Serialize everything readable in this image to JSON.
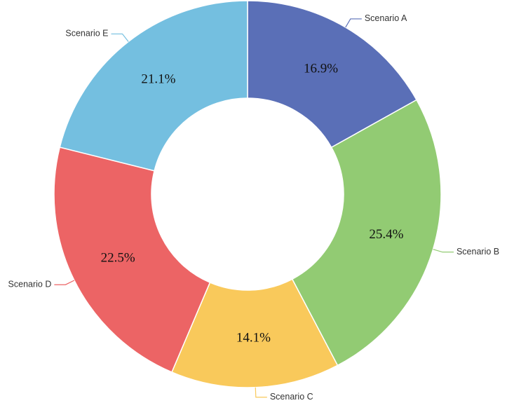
{
  "chart_data": {
    "type": "pie",
    "variant": "donut",
    "categories": [
      "Scenario A",
      "Scenario B",
      "Scenario C",
      "Scenario D",
      "Scenario E"
    ],
    "values": [
      16.9,
      25.4,
      14.1,
      22.5,
      21.1
    ],
    "value_labels": [
      "16.9%",
      "25.4%",
      "14.1%",
      "22.5%",
      "21.1%"
    ],
    "colors": [
      "#5a6fb7",
      "#92cb73",
      "#f9c95b",
      "#ec6465",
      "#74bfe0"
    ],
    "start": "12 o'clock",
    "direction": "clockwise",
    "legend": "none",
    "labels_outside": true
  }
}
